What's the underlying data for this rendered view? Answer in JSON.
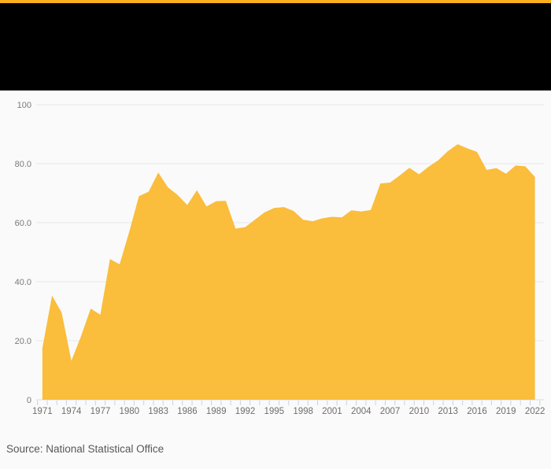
{
  "accent_color": "#FCAE1E",
  "header": {
    "background": "#000000"
  },
  "source": {
    "label": "Source: National Statistical Office"
  },
  "chart_data": {
    "type": "area",
    "title": "",
    "x": [
      1971,
      1972,
      1973,
      1974,
      1975,
      1976,
      1977,
      1978,
      1979,
      1980,
      1981,
      1982,
      1983,
      1984,
      1985,
      1986,
      1987,
      1988,
      1989,
      1990,
      1991,
      1992,
      1993,
      1994,
      1995,
      1996,
      1997,
      1998,
      1999,
      2000,
      2001,
      2002,
      2003,
      2004,
      2005,
      2006,
      2007,
      2008,
      2009,
      2010,
      2011,
      2012,
      2013,
      2014,
      2015,
      2016,
      2017,
      2018,
      2019,
      2020,
      2021,
      2022
    ],
    "values": [
      17.5,
      35.3,
      29.5,
      13.2,
      21.5,
      30.9,
      28.8,
      47.7,
      45.9,
      57.0,
      69.0,
      70.5,
      77.0,
      72.0,
      69.4,
      66.0,
      71.0,
      65.5,
      67.3,
      67.4,
      58.0,
      58.5,
      61.0,
      63.5,
      65.0,
      65.3,
      64.0,
      61.0,
      60.5,
      61.5,
      62.0,
      61.8,
      64.2,
      63.8,
      64.3,
      73.3,
      73.6,
      76.0,
      78.6,
      76.4,
      79.0,
      81.2,
      84.3,
      86.6,
      85.2,
      84.0,
      77.9,
      78.5,
      76.6,
      79.4,
      79.1,
      75.5
    ],
    "ylim": [
      0,
      100
    ],
    "yticks": [
      {
        "value": 0,
        "label": "0"
      },
      {
        "value": 20,
        "label": "20.0"
      },
      {
        "value": 40,
        "label": "40.0"
      },
      {
        "value": 60,
        "label": "60.0"
      },
      {
        "value": 80,
        "label": "80.0"
      },
      {
        "value": 100,
        "label": "100"
      }
    ],
    "xtick_every_years": 3,
    "xtick_labels": [
      "1971",
      "1974",
      "1977",
      "1980",
      "1983",
      "1986",
      "1989",
      "1992",
      "1995",
      "1998",
      "2001",
      "2004",
      "2007",
      "2010",
      "2013",
      "2016",
      "2019",
      "2022"
    ],
    "grid": true,
    "legend": "none",
    "colors": {
      "fill": "#FABD3C",
      "grid": "#e8e8e8",
      "baseline": "#dcdcdc",
      "tick": "#c9d2e2",
      "axis_text": "#6e6e6e",
      "ytick_text": "#7a7a7a"
    }
  }
}
